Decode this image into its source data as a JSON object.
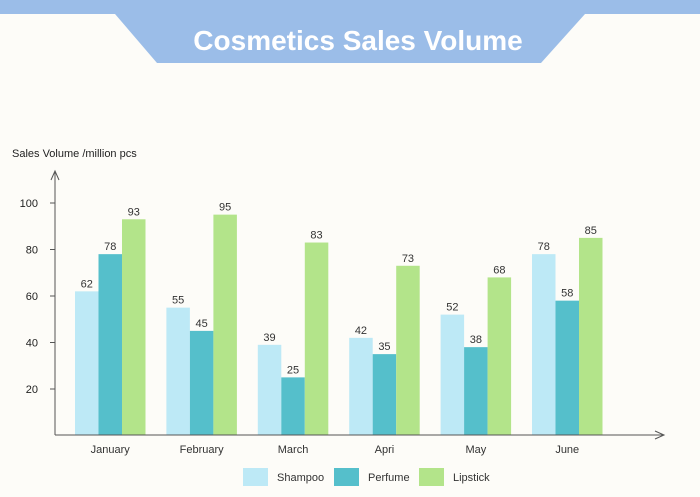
{
  "chart_data": {
    "type": "bar",
    "title": "Cosmetics Sales Volume",
    "ylabel": "Sales Volume /million pcs",
    "xlabel": "",
    "categories": [
      "January",
      "February",
      "March",
      "Apri",
      "May",
      "June"
    ],
    "series": [
      {
        "name": "Shampoo",
        "color": "#bde9f6",
        "values": [
          62,
          55,
          39,
          42,
          52,
          78
        ]
      },
      {
        "name": "Perfume",
        "color": "#55bfcb",
        "values": [
          78,
          45,
          25,
          35,
          38,
          58
        ]
      },
      {
        "name": "Lipstick",
        "color": "#b3e48a",
        "values": [
          93,
          95,
          83,
          73,
          68,
          85
        ]
      }
    ],
    "yticks": [
      20,
      40,
      60,
      80,
      100
    ],
    "ylim": [
      0,
      110
    ],
    "grid": false,
    "legend": "bottom",
    "title_color": "#9bbde8"
  }
}
